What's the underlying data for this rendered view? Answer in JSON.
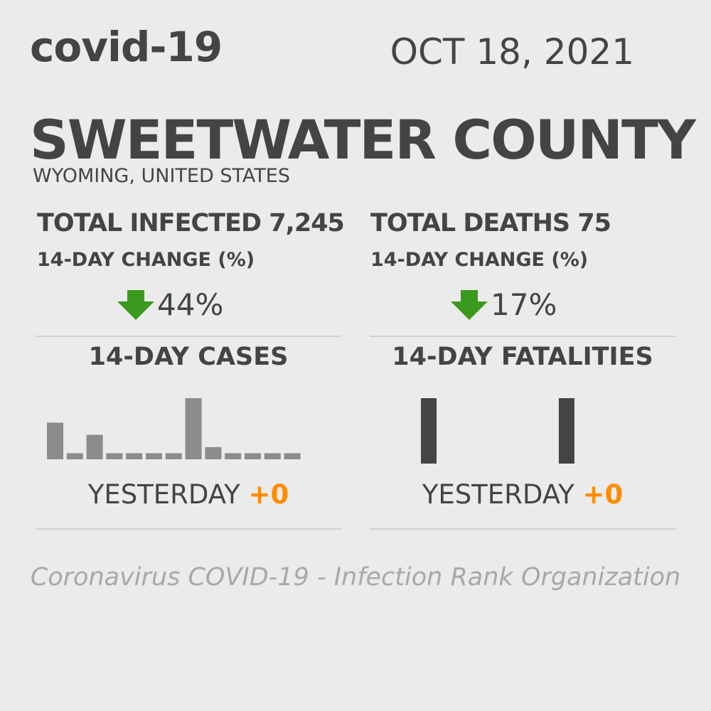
{
  "header": {
    "brand": "covid-19",
    "date": "OCT 18, 2021"
  },
  "location": {
    "county": "SWEETWATER COUNTY",
    "region": "WYOMING, UNITED STATES"
  },
  "infected": {
    "title": "TOTAL INFECTED 7,245",
    "change_label": "14-DAY CHANGE (%)",
    "change_value": "44%",
    "change_direction": "down",
    "arrow_color": "#3a9a1e"
  },
  "deaths": {
    "title": "TOTAL DEATHS 75",
    "change_label": "14-DAY CHANGE (%)",
    "change_value": "17%",
    "change_direction": "down",
    "arrow_color": "#3a9a1e"
  },
  "cases_panel": {
    "title": "14-DAY CASES",
    "yesterday_label": "YESTERDAY",
    "yesterday_value": "+0"
  },
  "fatalities_panel": {
    "title": "14-DAY FATALITIES",
    "yesterday_label": "YESTERDAY",
    "yesterday_value": "+0"
  },
  "chart_data": [
    {
      "type": "bar",
      "title": "14-DAY CASES",
      "bar_color": "#8c8c8c",
      "values": [
        6,
        1,
        4,
        1,
        1,
        1,
        1,
        10,
        2,
        1,
        1,
        1,
        1
      ]
    },
    {
      "type": "bar",
      "title": "14-DAY FATALITIES",
      "bar_color": "#444444",
      "values": [
        1,
        0,
        0,
        0,
        0,
        0,
        0,
        1
      ]
    }
  ],
  "footer": {
    "text": "Coronavirus COVID-19 - Infection Rank Organization"
  }
}
